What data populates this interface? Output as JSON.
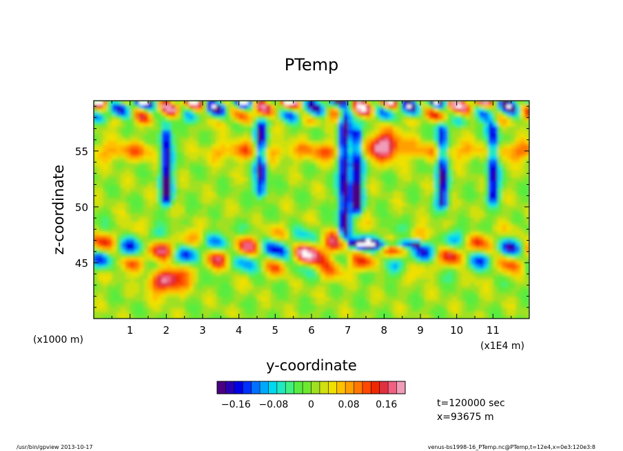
{
  "chart_data": {
    "type": "heatmap",
    "title": "PTemp",
    "xlabel": "y-coordinate",
    "ylabel": "z-coordinate",
    "x_unit_left": "(x1000 m)",
    "x_unit_right": "(x1E4 m)",
    "x_ticks": [
      "1",
      "2",
      "3",
      "4",
      "5",
      "6",
      "7",
      "8",
      "9",
      "10",
      "11"
    ],
    "x_tick_values": [
      1,
      2,
      3,
      4,
      5,
      6,
      7,
      8,
      9,
      10,
      11
    ],
    "xlim": [
      0,
      12
    ],
    "y_ticks": [
      "45",
      "50",
      "55"
    ],
    "y_tick_values": [
      45,
      50,
      55
    ],
    "ylim": [
      40,
      59.5
    ],
    "grid": false,
    "colorbar": {
      "ticks": [
        "−0.16",
        "−0.08",
        "0",
        "0.08",
        "0.16"
      ],
      "tick_values": [
        -0.16,
        -0.08,
        0,
        0.08,
        0.16
      ],
      "range": [
        -0.2,
        0.2
      ],
      "placement": "bottom-center"
    },
    "features": [
      {
        "kind": "plume",
        "y": 2.0,
        "z_bottom": 50.8,
        "z_top": 56.5,
        "value": -0.2
      },
      {
        "kind": "plume",
        "y": 4.6,
        "z_bottom": 51.5,
        "z_top": 57.0,
        "value": -0.18
      },
      {
        "kind": "plume",
        "y": 6.9,
        "z_bottom": 47.5,
        "z_top": 58.0,
        "value": -0.2
      },
      {
        "kind": "plume",
        "y": 7.25,
        "z_bottom": 50.0,
        "z_top": 56.5,
        "value": -0.2
      },
      {
        "kind": "plume",
        "y": 9.6,
        "z_bottom": 50.5,
        "z_top": 57.0,
        "value": -0.18
      },
      {
        "kind": "plume",
        "y": 11.0,
        "z_bottom": 51.0,
        "z_top": 57.0,
        "value": -0.18
      },
      {
        "kind": "warm_band",
        "y_from": 0.0,
        "y_to": 12.0,
        "z": 55.0,
        "value": 0.14
      },
      {
        "kind": "cool_band",
        "y_from": 7.0,
        "y_to": 9.0,
        "z": 46.7,
        "value": -0.17
      },
      {
        "kind": "warm_spot",
        "y": 8.0,
        "z": 55.5,
        "value": 0.2
      },
      {
        "kind": "warm_spot",
        "y": 2.0,
        "z": 43.5,
        "value": 0.18
      },
      {
        "kind": "warm_spot",
        "y": 6.5,
        "z": 45.5,
        "value": 0.18
      }
    ]
  },
  "run_info": {
    "time": "t=120000 sec",
    "position": "x=93675 m"
  },
  "footer": {
    "left": "/usr/bin/gpview   2013-10-17",
    "right": "venus-bs1998-16_PTemp.nc@PTemp,t=12e4,x=0e3:120e3:8"
  }
}
